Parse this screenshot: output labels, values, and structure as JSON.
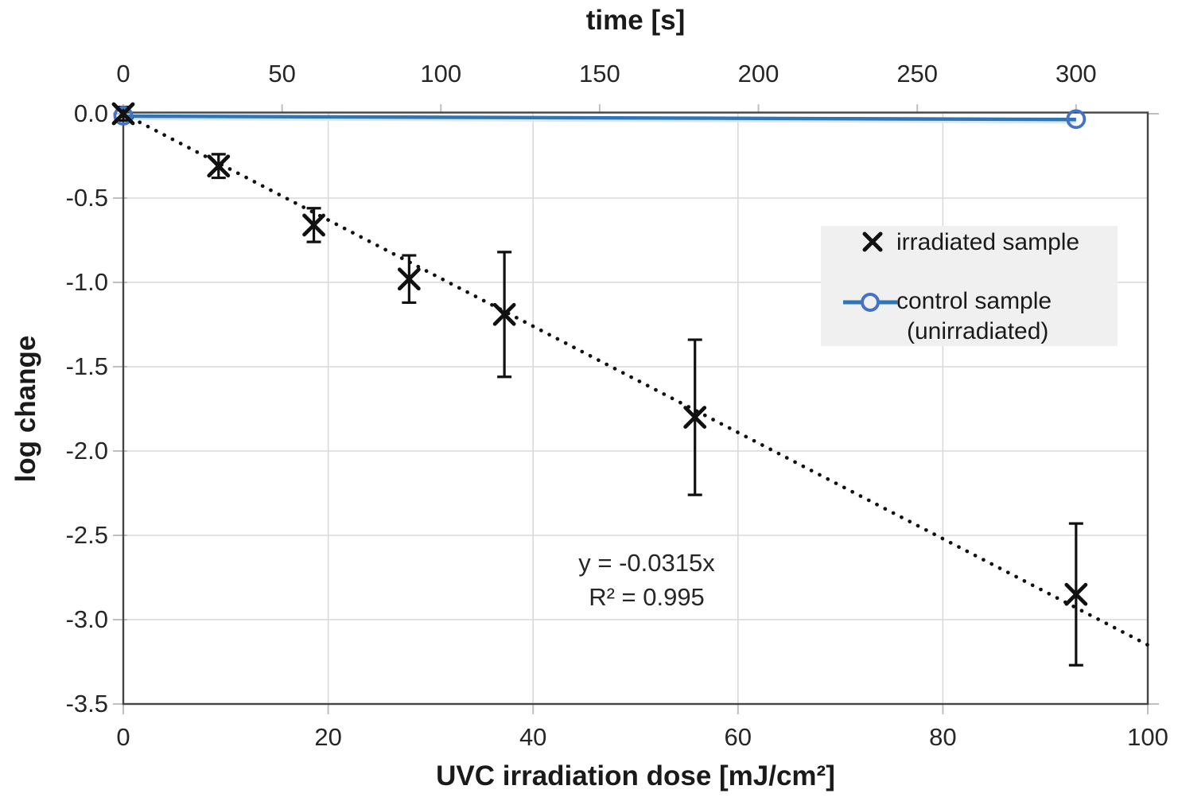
{
  "figure": {
    "top_axis_title": "time [s]",
    "bottom_axis_title": "UVC irradiation dose [mJ/cm²]",
    "y_axis_title": "log change"
  },
  "legend": {
    "items": [
      {
        "label": "irradiated sample",
        "marker": "black-x-marker"
      },
      {
        "label": "control sample",
        "label_line2": "(unirradiated)",
        "marker": "blue-line-open-circle-marker"
      }
    ]
  },
  "annotation": {
    "equation": "y = -0.0315x",
    "r_squared": "R² = 0.995"
  },
  "colors": {
    "control_line_blue": "#2e75b6",
    "control_line_pale": "#d9e7f5",
    "control_marker_blue": "#4472c4",
    "marker_black": "#111111",
    "grid": "#d9d9d9",
    "tick": "#bfbfbf",
    "border": "#454545",
    "legend_bg": "#f0f0f0",
    "text": "#262626"
  },
  "chart_data": {
    "type": "scatter",
    "title": "time [s] (secondary top axis)",
    "xlabel": "UVC irradiation dose [mJ/cm²]",
    "ylabel": "log change",
    "grid": true,
    "legend_position": "inside-right",
    "x_bottom_axis": {
      "min": 0,
      "max": 100,
      "ticks": [
        0,
        20,
        40,
        60,
        80,
        100
      ]
    },
    "x_top_axis": {
      "label": "time [s]",
      "ticks": [
        0,
        50,
        100,
        150,
        200,
        250,
        300
      ],
      "dose_per_second": 0.31
    },
    "y_axis": {
      "min": -3.5,
      "max": 0,
      "tick_step": 0.5,
      "tick_labels": [
        "0.0",
        "-0.5",
        "-1.0",
        "-1.5",
        "-2.0",
        "-2.5",
        "-3.0",
        "-3.5"
      ]
    },
    "series": [
      {
        "name": "irradiated sample",
        "marker": "x",
        "x_dose": [
          0,
          9.3,
          18.6,
          27.9,
          37.2,
          55.8,
          93
        ],
        "time_s": [
          0,
          30,
          60,
          90,
          120,
          180,
          300
        ],
        "log_change": [
          0,
          -0.31,
          -0.66,
          -0.98,
          -1.19,
          -1.8,
          -2.85
        ],
        "error": [
          0.04,
          0.07,
          0.1,
          0.14,
          0.37,
          0.46,
          0.42
        ]
      },
      {
        "name": "control sample (unirradiated)",
        "marker": "open-circle-with-line",
        "x_dose": [
          0,
          93
        ],
        "time_s": [
          0,
          300
        ],
        "log_change": [
          0,
          -0.02
        ]
      }
    ],
    "trendline": {
      "equation": "y = -0.0315x",
      "slope": -0.0315,
      "r2": 0.995,
      "style": "dotted",
      "x_range": [
        0,
        100
      ]
    }
  }
}
